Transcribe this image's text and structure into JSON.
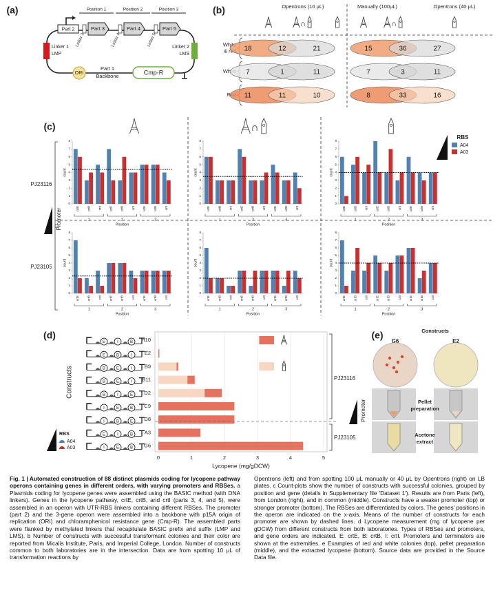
{
  "panel_a": {
    "label": "(a)",
    "positions": [
      "Position 1",
      "Position 2",
      "Position 3"
    ],
    "parts": [
      "Part 2",
      "Part 3",
      "Part 4",
      "Part 5"
    ],
    "linkers": [
      "Linker 3",
      "Linker 4",
      "Linker 5"
    ],
    "linker1": [
      "Linker 1",
      "LMP"
    ],
    "linker2": [
      "Linker 2",
      "LMS"
    ],
    "ori": "ORI",
    "backbone": [
      "Part 1",
      "Backbone"
    ],
    "cmp": "Cmp-R"
  },
  "panel_b": {
    "label": "(b)",
    "headers": [
      "Opentrons (10 μL)",
      "Manually (100μL)",
      "Opentrons (40 μL)"
    ],
    "rows": [
      {
        "label": [
          "White",
          "& red"
        ],
        "colors": [
          "#ef9d6f",
          "#d9d9d9"
        ],
        "left": [
          18,
          12,
          21
        ],
        "right": [
          15,
          36,
          27
        ]
      },
      {
        "label": [
          "White"
        ],
        "colors": [
          "#e6e6e6",
          "#d2d2d2"
        ],
        "left": [
          7,
          1,
          11
        ],
        "right": [
          7,
          3,
          11
        ]
      },
      {
        "label": [
          "Red"
        ],
        "colors": [
          "#ec8a5a",
          "#f6d2b8"
        ],
        "left": [
          11,
          11,
          10
        ],
        "right": [
          8,
          33,
          16
        ]
      }
    ]
  },
  "panel_c": {
    "label": "(c)",
    "legend": {
      "title": "RBS",
      "items": [
        {
          "name": "A04",
          "color": "#4f81b3"
        },
        {
          "name": "A03",
          "color": "#c8312f"
        }
      ]
    },
    "promoters": [
      "PJ23116",
      "PJ23105"
    ],
    "promoter_label": "Promoter",
    "categories": [
      "crtE",
      "crtB",
      "crtI",
      "crtE",
      "crtB",
      "crtI",
      "crtE",
      "crtB",
      "crtI"
    ],
    "positions": [
      "1",
      "2",
      "3"
    ],
    "x_label": "Position",
    "y_label": "count",
    "ylim": [
      0,
      8
    ],
    "yticks": [
      0,
      1,
      2,
      3,
      4,
      5,
      6,
      7,
      8
    ],
    "charts": [
      {
        "series": [
          {
            "values": [
              7,
              3,
              5,
              7,
              3,
              4,
              5,
              5,
              4
            ]
          },
          {
            "values": [
              6,
              4,
              4,
              3,
              6,
              4,
              5,
              5,
              3
            ]
          }
        ],
        "mean": 4.4
      },
      {
        "series": [
          {
            "values": [
              6,
              3,
              3,
              7,
              3,
              3,
              5,
              3,
              4
            ]
          },
          {
            "values": [
              6,
              3,
              3,
              6,
              3,
              4,
              4,
              3,
              2
            ]
          }
        ],
        "mean": 3.5
      },
      {
        "series": [
          {
            "values": [
              6,
              5,
              4,
              8,
              4,
              3,
              6,
              4,
              4
            ]
          },
          {
            "values": [
              1,
              6,
              5,
              4,
              7,
              4,
              4,
              3,
              4
            ]
          }
        ],
        "mean": 4
      },
      {
        "series": [
          {
            "values": [
              7,
              2,
              3,
              4,
              4,
              3,
              3,
              3,
              3
            ]
          },
          {
            "values": [
              2,
              1,
              1,
              4,
              4,
              2,
              3,
              3,
              3
            ]
          }
        ],
        "mean": 2.3
      },
      {
        "series": [
          {
            "values": [
              6,
              2,
              1,
              3,
              1,
              3,
              3,
              1,
              3
            ]
          },
          {
            "values": [
              2,
              2,
              1,
              3,
              3,
              3,
              3,
              3,
              2
            ]
          }
        ],
        "mean": 2
      },
      {
        "series": [
          {
            "values": [
              7,
              3,
              3,
              5,
              3,
              5,
              6,
              2,
              4
            ]
          },
          {
            "values": [
              1,
              6,
              4,
              4,
              4,
              5,
              6,
              3,
              4
            ]
          }
        ],
        "mean": 4
      }
    ]
  },
  "panel_d": {
    "label": "(d)",
    "y_label": "Constructs",
    "x_label": "Lycopene (mg/gDCW)",
    "xlim": [
      0,
      5
    ],
    "xticks": [
      0,
      1,
      2,
      3,
      4,
      5
    ],
    "constructs": [
      {
        "name": "H10",
        "order": [
          "E",
          "I",
          "B"
        ]
      },
      {
        "name": "E2",
        "order": [
          "E",
          "B",
          "I"
        ]
      },
      {
        "name": "B9",
        "order": [
          "B",
          "E",
          "I"
        ]
      },
      {
        "name": "B11",
        "order": [
          "B",
          "E",
          "I"
        ]
      },
      {
        "name": "D2",
        "order": [
          "B",
          "I",
          "E"
        ]
      },
      {
        "name": "C9",
        "order": [
          "I",
          "E",
          "B"
        ]
      },
      {
        "name": "D8",
        "order": [
          "I",
          "B",
          "E"
        ]
      },
      {
        "name": "A3",
        "order": [
          "E",
          "I",
          "B"
        ]
      },
      {
        "name": "G6",
        "order": [
          "I",
          "E",
          "B"
        ]
      }
    ],
    "series": [
      {
        "color": "#f7d7c1",
        "values": [
          0,
          0,
          0.55,
          0.88,
          1.4,
          0,
          0,
          0,
          0
        ]
      },
      {
        "color": "#e5725e",
        "values": [
          0,
          0.03,
          0.05,
          0.22,
          0.52,
          2.3,
          2.3,
          1.27,
          4.38
        ]
      }
    ],
    "promoters": [
      "PJ23116",
      "PJ23105"
    ],
    "promoter_label": "Promoter",
    "rbs": {
      "title": "RBS",
      "items": [
        {
          "name": "A04",
          "color": "#4f81b3"
        },
        {
          "name": "A03",
          "color": "#c8312f"
        }
      ]
    }
  },
  "panel_e": {
    "label": "(e)",
    "title": "Constructs",
    "columns": [
      "G6",
      "E2"
    ],
    "rows": [
      [
        "Pellet",
        "preparation"
      ],
      [
        "Acetone",
        "extract"
      ]
    ]
  },
  "caption": {
    "title": "Fig. 1 | Automated construction of 88 distinct plasmids coding for lycopene pathway operons containing genes in different orders, with varying promoters and RBSes.",
    "left": " a Plasmids coding for lycopene genes were assembled using the BASIC method (with DNA linkers). Genes in the lycopene pathway, crtE, crtB, and crtI (parts 3, 4, and 5), were assembled in an operon with UTR-RBS linkers containing different RBSes. The promoter (part 2) and the 3-gene operon were assembled into a backbone with p15A origin of replication (ORI) and chloramphenicol resistance gene (Cmp-R). The assembled parts were flanked by methylated linkers that recapitulate BASIC prefix and suffix (LMP and LMS). b Number of constructs with successful transformant colonies and their color are reported from Micalis Institute, Paris, and Imperial College, London. Number of constructs common to both laboratories are in the intersection. Data are from spotting 10 μL of transformation reactions by",
    "right": "Opentrons (left) and from spotting 100 μL manually or 40 μL by Opentrons (right) on LB plates. c Count-plots show the number of constructs with successful colonies, grouped by position and gene (details in Supplementary file 'Dataset 1'). Results are from Paris (left), from London (right), and in common (middle). Constructs have a weaker promoter (top) or stronger promoter (bottom). The RBSes are differentiated by colors. The genes' positions in the operon are indicated on the x-axis. Means of the number of constructs for each promoter are shown by dashed lines. d Lycopene measurement (mg of lycopene per gDCW) from different constructs from both laboratories. Types of RBSes and promoters, and gene orders are indicated. E: crtE, B: crtB, I: crtI. Promoters and terminators are shown at the extremities. e Examples of red and white colonies (top), pellet preparation (middle), and the extracted lycopene (bottom). Source data are provided in the Source Data file."
  }
}
